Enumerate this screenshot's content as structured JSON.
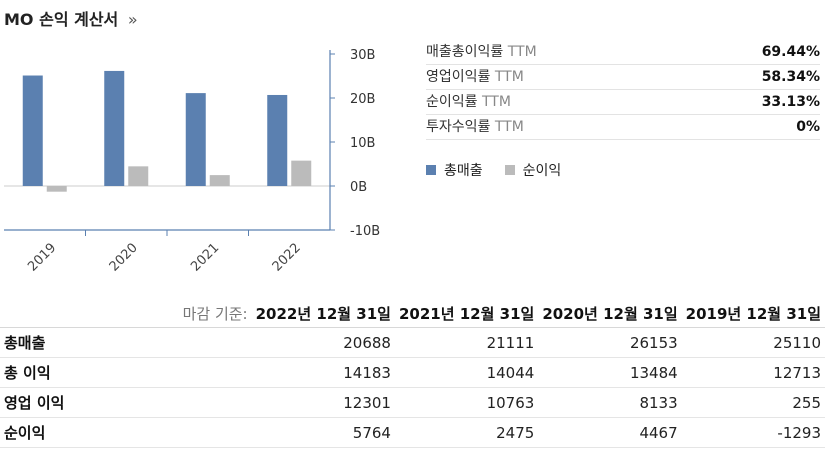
{
  "page": {
    "ticker": "MO",
    "title": "손익 계산서",
    "title_arrow": "»"
  },
  "chart_data": {
    "type": "bar",
    "categories": [
      "2019",
      "2020",
      "2021",
      "2022"
    ],
    "series": [
      {
        "name": "총매출",
        "color": "#5b80b0",
        "values": [
          25.11,
          26.153,
          21.111,
          20.688
        ]
      },
      {
        "name": "순이익",
        "color": "#bbbbbb",
        "values": [
          -1.293,
          4.467,
          2.475,
          5.764
        ]
      }
    ],
    "ylim": [
      -10,
      30
    ],
    "yticks": [
      30,
      20,
      10,
      0,
      -10
    ],
    "ytick_labels": [
      "30B",
      "20B",
      "10B",
      "0B",
      "-10B"
    ],
    "axis_color": "#5b80b0",
    "legend_position": "right"
  },
  "ratios": [
    {
      "label": "매출총이익률",
      "suffix": "TTM",
      "value": "69.44%"
    },
    {
      "label": "영업이익률",
      "suffix": "TTM",
      "value": "58.34%"
    },
    {
      "label": "순이익률",
      "suffix": "TTM",
      "value": "33.13%"
    },
    {
      "label": "투자수익률",
      "suffix": "TTM",
      "value": "0%"
    }
  ],
  "table": {
    "header_label": "마감 기준:",
    "columns": [
      "2022년 12월 31일",
      "2021년 12월 31일",
      "2020년 12월 31일",
      "2019년 12월 31일"
    ],
    "rows": [
      {
        "name": "총매출",
        "values": [
          "20688",
          "21111",
          "26153",
          "25110"
        ]
      },
      {
        "name": "총 이익",
        "values": [
          "14183",
          "14044",
          "13484",
          "12713"
        ]
      },
      {
        "name": "영업 이익",
        "values": [
          "12301",
          "10763",
          "8133",
          "255"
        ]
      },
      {
        "name": "순이익",
        "values": [
          "5764",
          "2475",
          "4467",
          "-1293"
        ]
      }
    ]
  }
}
